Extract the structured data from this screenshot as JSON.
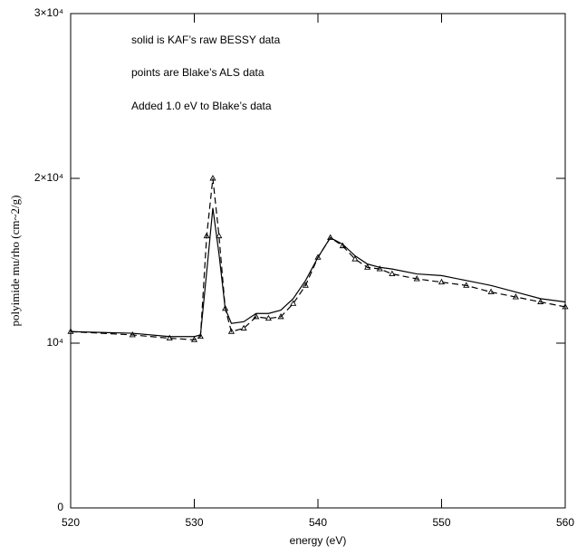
{
  "chart_data": {
    "type": "line",
    "annotations": [
      "solid is KAF’s raw BESSY data",
      "points are Blake’s ALS data",
      "Added 1.0 eV to Blake’s data"
    ],
    "xlabel": "energy (eV)",
    "ylabel": "polyimide mu/rho (cm~2/g)",
    "x": [
      520,
      525,
      528,
      530,
      530.5,
      531,
      531.5,
      532,
      532.5,
      533,
      534,
      535,
      536,
      537,
      538,
      539,
      540,
      541,
      542,
      543,
      544,
      545,
      546,
      548,
      550,
      552,
      554,
      556,
      558,
      560
    ],
    "series": [
      {
        "color": "#000000",
        "style": "solid",
        "markers": false,
        "values": [
          10700,
          10600,
          10400,
          10400,
          10500,
          14300,
          18200,
          15400,
          12100,
          11200,
          11300,
          11800,
          11800,
          12000,
          12700,
          13800,
          15200,
          16400,
          16000,
          15300,
          14800,
          14600,
          14500,
          14200,
          14100,
          13800,
          13500,
          13100,
          12700,
          12500
        ]
      },
      {
        "color": "#000000",
        "style": "dashed",
        "markers": true,
        "values": [
          10700,
          10500,
          10300,
          10200,
          10400,
          16500,
          20000,
          16500,
          12100,
          10700,
          10900,
          11600,
          11500,
          11600,
          12400,
          13500,
          15200,
          16400,
          15900,
          15100,
          14600,
          14500,
          14200,
          13900,
          13700,
          13500,
          13100,
          12800,
          12500,
          12200
        ]
      }
    ],
    "xlim": [
      520,
      560
    ],
    "xticks": [
      520,
      530,
      540,
      550,
      560
    ],
    "ylim": [
      0,
      30000
    ],
    "yticks": [
      {
        "value": 0,
        "label": "0"
      },
      {
        "value": 10000,
        "label": "10⁴"
      },
      {
        "value": 20000,
        "label": "2×10⁴"
      },
      {
        "value": 30000,
        "label": "3×10⁴"
      }
    ],
    "grid": false
  }
}
